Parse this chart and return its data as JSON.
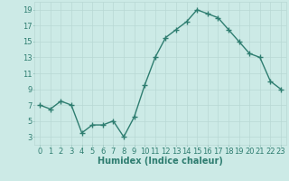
{
  "x": [
    0,
    1,
    2,
    3,
    4,
    5,
    6,
    7,
    8,
    9,
    10,
    11,
    12,
    13,
    14,
    15,
    16,
    17,
    18,
    19,
    20,
    21,
    22,
    23
  ],
  "y": [
    7.0,
    6.5,
    7.5,
    7.0,
    3.5,
    4.5,
    4.5,
    5.0,
    3.0,
    5.5,
    9.5,
    13.0,
    15.5,
    16.5,
    17.5,
    19.0,
    18.5,
    18.0,
    16.5,
    15.0,
    13.5,
    13.0,
    10.0,
    9.0
  ],
  "xlabel": "Humidex (Indice chaleur)",
  "xlim": [
    -0.5,
    23.5
  ],
  "ylim": [
    2,
    20
  ],
  "yticks": [
    3,
    5,
    7,
    9,
    11,
    13,
    15,
    17,
    19
  ],
  "xticks": [
    0,
    1,
    2,
    3,
    4,
    5,
    6,
    7,
    8,
    9,
    10,
    11,
    12,
    13,
    14,
    15,
    16,
    17,
    18,
    19,
    20,
    21,
    22,
    23
  ],
  "xtick_labels": [
    "0",
    "1",
    "2",
    "3",
    "4",
    "5",
    "6",
    "7",
    "8",
    "9",
    "10",
    "11",
    "12",
    "13",
    "14",
    "15",
    "16",
    "17",
    "18",
    "19",
    "20",
    "21",
    "22",
    "23"
  ],
  "line_color": "#2e7d70",
  "marker": "+",
  "bg_color": "#cceae6",
  "grid_color": "#b8d8d4",
  "tick_color": "#2e7d70",
  "label_color": "#2e7d70",
  "xlabel_fontsize": 7,
  "tick_fontsize": 6,
  "linewidth": 1.0,
  "markersize": 4,
  "markeredgewidth": 1.0
}
